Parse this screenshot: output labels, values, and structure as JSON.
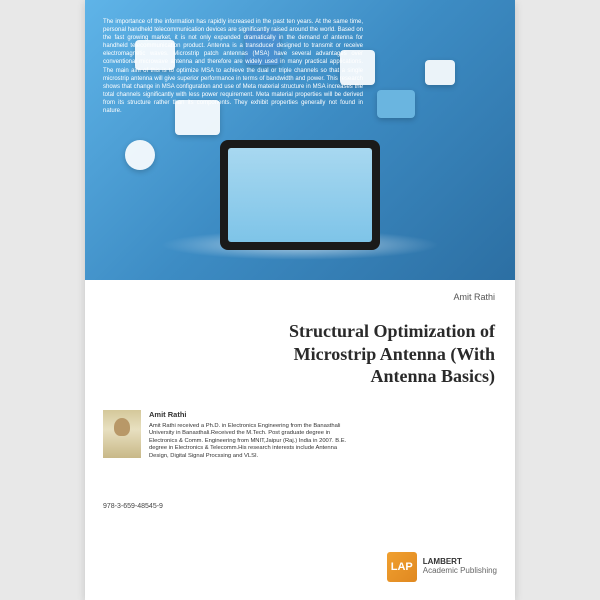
{
  "cover": {
    "abstract": "The importance of the information has rapidly increased in the past ten years. At the same time, personal handheld telecommunication devices are significantly raised around the world. Based on the fast growing market, it is not only expanded dramatically in the demand of antenna for handheld telecommunication product. Antenna is a transducer designed to transmit or receive electromagnetic waves. Microstrip patch antennas (MSA) have several advantages over conventional microwave antenna and therefore are widely used in many practical applications. The main aim of this is to optimize MSA to achieve the dual or triple channels so that a single microstrip antenna will give superior performance in terms of bandwidth and power. This research shows that change in MSA configuration and use of Meta material structure in MSA increases the total channels significantly with less power requirement. Meta material properties will be derived from its structure rather than its components. They exhibit properties generally not found in nature.",
    "author_top": "Amit Rathi",
    "title": "Structural Optimization of Microstrip Antenna (With Antenna Basics)",
    "bio": {
      "name": "Amit Rathi",
      "text": "Amit Rathi received a Ph.D. in Electronics Engineering from the Banasthali University in Banasthali.Received the M.Tech. Post graduate degree in Electronics & Comm. Engineering from MNIT,Jaipur (Raj.) India in 2007. B.E. degree in Electronics & Telecomm.His research interests include Antenna Design, Digital Signal Procssing and VLSI."
    },
    "isbn": "978-3-659-48545-9",
    "publisher": {
      "logo": "LAP",
      "name": "LAMBERT",
      "tagline": "Academic Publishing"
    },
    "colors": {
      "hero_gradient_start": "#5fb4e8",
      "hero_gradient_end": "#2c6fa3",
      "title_color": "#2a2a2a",
      "background": "#ffffff"
    }
  }
}
